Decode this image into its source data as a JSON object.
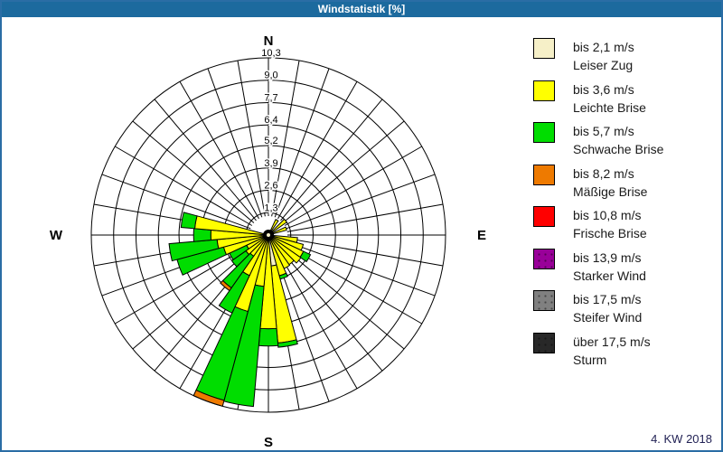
{
  "window": {
    "title": "Windstatistik [%]",
    "footer": "4. KW 2018"
  },
  "compass": {
    "n": "N",
    "e": "E",
    "s": "S",
    "w": "W"
  },
  "colors": {
    "frame": "#2a6da5",
    "titlebar_bg": "#1c6a9e",
    "titlebar_text": "#ffffff",
    "grid": "#000000",
    "footer_text": "#222255",
    "calm_dot": "#000000",
    "classes": {
      "leiser_zug": "#f6f0c8",
      "leichte_brise": "#ffff00",
      "schwache_brise": "#00dd00",
      "maessige_brise": "#ee7a00",
      "frische_brise": "#ff0000",
      "starker_wind": "#990099",
      "steifer_wind": "#808080",
      "sturm": "#282828"
    }
  },
  "legend": [
    {
      "key": "leiser_zug",
      "speed": "bis 2,1 m/s",
      "name": "Leiser Zug",
      "dotted": false
    },
    {
      "key": "leichte_brise",
      "speed": "bis 3,6 m/s",
      "name": "Leichte Brise",
      "dotted": false
    },
    {
      "key": "schwache_brise",
      "speed": "bis 5,7 m/s",
      "name": "Schwache Brise",
      "dotted": false
    },
    {
      "key": "maessige_brise",
      "speed": "bis 8,2 m/s",
      "name": "Mäßige Brise",
      "dotted": false
    },
    {
      "key": "frische_brise",
      "speed": "bis 10,8 m/s",
      "name": "Frische Brise",
      "dotted": false
    },
    {
      "key": "starker_wind",
      "speed": "bis 13,9 m/s",
      "name": "Starker Wind",
      "dotted": true
    },
    {
      "key": "steifer_wind",
      "speed": "bis 17,5 m/s",
      "name": "Steifer Wind",
      "dotted": true
    },
    {
      "key": "sturm",
      "speed": "über 17,5 m/s",
      "name": "Sturm",
      "dotted": true
    }
  ],
  "chart_data": {
    "type": "wind-rose",
    "unit": "%",
    "title": "Windstatistik [%]",
    "sector_width_deg": 10,
    "ring_max": 10.3,
    "ring_labels": [
      "1,3",
      "2,6",
      "3,9",
      "5,2",
      "6,4",
      "7,7",
      "9,0",
      "10,3"
    ],
    "ring_values": [
      1.3,
      2.6,
      3.9,
      5.2,
      6.4,
      7.7,
      9.0,
      10.3
    ],
    "calm_dot": true,
    "petals": [
      {
        "dir": 30,
        "parts": [
          [
            "leichte_brise",
            0,
            1.0
          ]
        ]
      },
      {
        "dir": 50,
        "parts": [
          [
            "leiser_zug",
            0,
            0.3
          ],
          [
            "leichte_brise",
            0.3,
            1.3
          ]
        ]
      },
      {
        "dir": 70,
        "parts": [
          [
            "leichte_brise",
            0,
            1.1
          ]
        ]
      },
      {
        "dir": 100,
        "parts": [
          [
            "leichte_brise",
            0,
            1.7
          ]
        ]
      },
      {
        "dir": 110,
        "parts": [
          [
            "leichte_brise",
            0,
            2.1
          ]
        ]
      },
      {
        "dir": 120,
        "parts": [
          [
            "leichte_brise",
            0,
            2.25
          ],
          [
            "schwache_brise",
            2.25,
            2.7
          ]
        ]
      },
      {
        "dir": 130,
        "parts": [
          [
            "leichte_brise",
            0,
            2.3
          ]
        ]
      },
      {
        "dir": 140,
        "parts": [
          [
            "leichte_brise",
            0,
            2.1
          ]
        ]
      },
      {
        "dir": 150,
        "parts": [
          [
            "leichte_brise",
            0,
            2.15
          ]
        ]
      },
      {
        "dir": 160,
        "parts": [
          [
            "leichte_brise",
            0,
            2.45
          ],
          [
            "schwache_brise",
            2.45,
            2.65
          ]
        ]
      },
      {
        "dir": 170,
        "parts": [
          [
            "leiser_zug",
            0,
            1.8
          ],
          [
            "leichte_brise",
            1.8,
            6.3
          ],
          [
            "schwache_brise",
            6.3,
            6.55
          ]
        ]
      },
      {
        "dir": 180,
        "parts": [
          [
            "leiser_zug",
            0,
            0.3
          ],
          [
            "leichte_brise",
            0.3,
            5.45
          ],
          [
            "schwache_brise",
            5.45,
            6.45
          ]
        ]
      },
      {
        "dir": 190,
        "parts": [
          [
            "leichte_brise",
            0,
            3.0
          ],
          [
            "schwache_brise",
            3.0,
            10.0
          ]
        ]
      },
      {
        "dir": 200,
        "parts": [
          [
            "leichte_brise",
            0,
            4.6
          ],
          [
            "schwache_brise",
            4.6,
            9.95
          ],
          [
            "maessige_brise",
            9.95,
            10.3
          ]
        ]
      },
      {
        "dir": 210,
        "parts": [
          [
            "leichte_brise",
            0,
            2.6
          ],
          [
            "schwache_brise",
            2.6,
            5.0
          ]
        ]
      },
      {
        "dir": 220,
        "parts": [
          [
            "leichte_brise",
            0,
            1.5
          ],
          [
            "schwache_brise",
            1.5,
            3.75
          ],
          [
            "maessige_brise",
            3.75,
            3.95
          ]
        ]
      },
      {
        "dir": 230,
        "parts": [
          [
            "leichte_brise",
            0,
            1.6
          ],
          [
            "schwache_brise",
            1.6,
            2.6
          ]
        ]
      },
      {
        "dir": 240,
        "parts": [
          [
            "leichte_brise",
            0,
            1.4
          ],
          [
            "schwache_brise",
            1.4,
            2.5
          ]
        ]
      },
      {
        "dir": 250,
        "parts": [
          [
            "leichte_brise",
            0,
            2.7
          ],
          [
            "schwache_brise",
            2.7,
            5.5
          ]
        ]
      },
      {
        "dir": 260,
        "parts": [
          [
            "leichte_brise",
            0,
            3.0
          ],
          [
            "schwache_brise",
            3.0,
            5.8
          ]
        ]
      },
      {
        "dir": 270,
        "parts": [
          [
            "leichte_brise",
            0,
            3.35
          ],
          [
            "schwache_brise",
            3.35,
            4.35
          ]
        ]
      },
      {
        "dir": 280,
        "parts": [
          [
            "leichte_brise",
            0,
            4.3
          ],
          [
            "schwache_brise",
            4.3,
            5.1
          ]
        ]
      }
    ]
  }
}
